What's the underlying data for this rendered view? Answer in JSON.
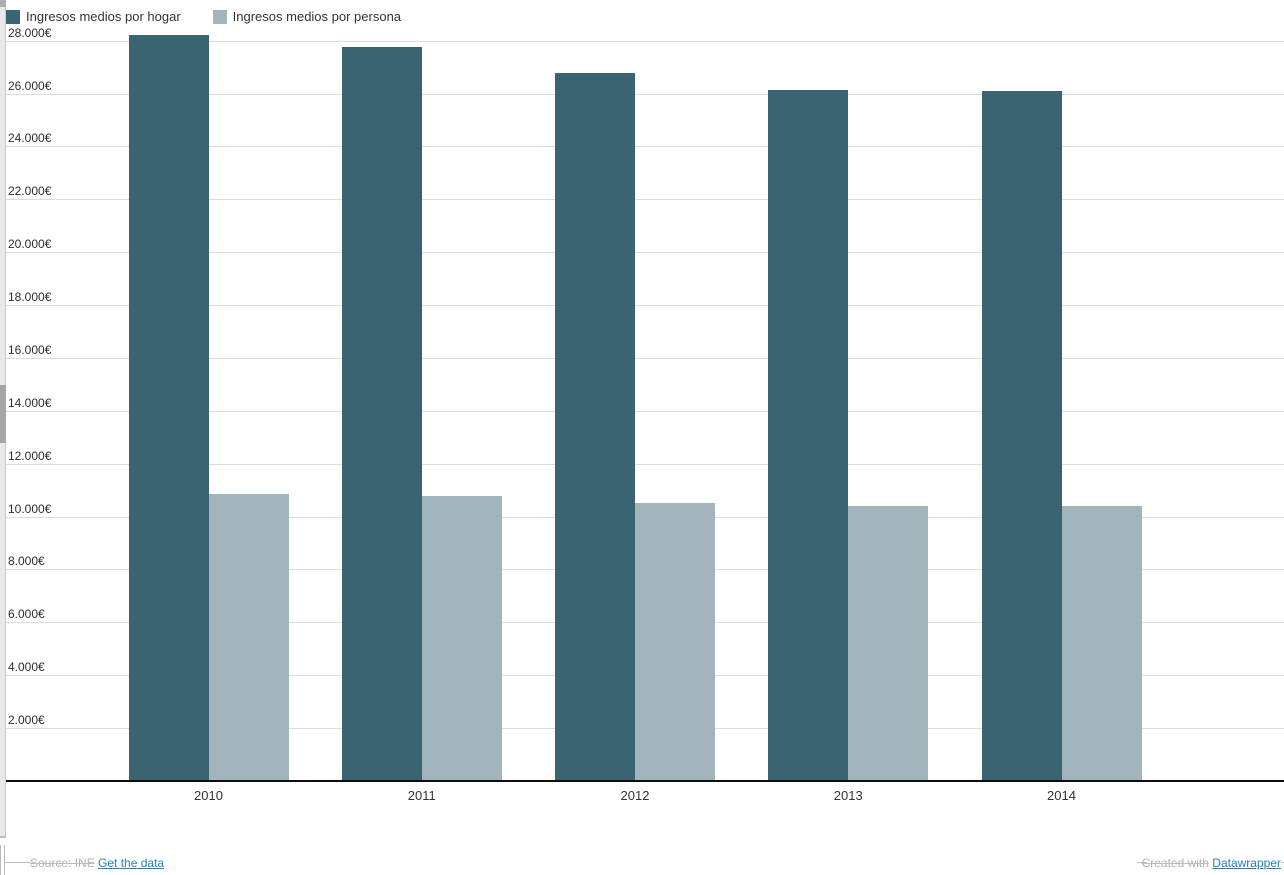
{
  "legend": {
    "items": [
      {
        "label": "Ingresos medios por hogar",
        "color": "#3b6472"
      },
      {
        "label": "Ingresos medios por persona",
        "color": "#a1b3bb"
      }
    ]
  },
  "chart_data": {
    "type": "bar",
    "categories": [
      "2010",
      "2011",
      "2012",
      "2013",
      "2014"
    ],
    "series": [
      {
        "name": "Ingresos medios por hogar",
        "color": "#3b6472",
        "values": [
          28206,
          27747,
          26775,
          26154,
          26092
        ]
      },
      {
        "name": "Ingresos medios por persona",
        "color": "#a1b3bb",
        "values": [
          10858,
          10795,
          10531,
          10391,
          10419
        ]
      }
    ],
    "title": "",
    "xlabel": "",
    "ylabel": "",
    "ylim": [
      0,
      28500
    ],
    "yticks": [
      2000,
      4000,
      6000,
      8000,
      10000,
      12000,
      14000,
      16000,
      18000,
      20000,
      22000,
      24000,
      26000,
      28000
    ],
    "ytick_labels": [
      "2.000€",
      "4.000€",
      "6.000€",
      "8.000€",
      "10.000€",
      "12.000€",
      "14.000€",
      "16.000€",
      "18.000€",
      "20.000€",
      "22.000€",
      "24.000€",
      "26.000€",
      "28.000€"
    ],
    "grid": true,
    "legend_position": "top-left"
  },
  "footer": {
    "source_label": "Source: INE",
    "get_data_link": "Get the data",
    "created_with": "Created with",
    "datawrapper_link": "Datawrapper"
  },
  "colors": {
    "bar_dark": "#3b6472",
    "bar_light": "#a1b3bb",
    "gridline": "#dcdcdc",
    "axis": "#0d0d0d",
    "link": "#2980b9",
    "footer_text": "#b3b3b3"
  }
}
